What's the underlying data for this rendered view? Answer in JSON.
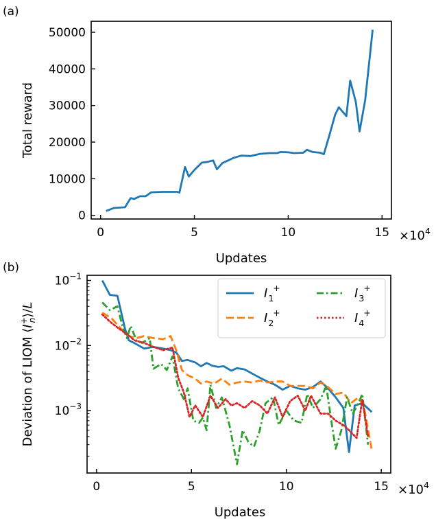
{
  "chart_data": [
    {
      "panel_label": "(a)",
      "type": "line",
      "xlabel": "Updates",
      "ylabel": "Total reward",
      "x_multiplier_label": "×10",
      "x_multiplier_exponent": "4",
      "xlim": [
        -0.5,
        15.5
      ],
      "ylim": [
        -1000,
        53000
      ],
      "yscale": "linear",
      "grid": false,
      "xticks": [
        {
          "value": 0,
          "label": "0"
        },
        {
          "value": 5,
          "label": "5"
        },
        {
          "value": 10,
          "label": "10"
        },
        {
          "value": 15,
          "label": "15"
        }
      ],
      "yticks": [
        {
          "value": 0,
          "label": "0"
        },
        {
          "value": 10000,
          "label": "10000"
        },
        {
          "value": 20000,
          "label": "20000"
        },
        {
          "value": 30000,
          "label": "30000"
        },
        {
          "value": 40000,
          "label": "40000"
        },
        {
          "value": 50000,
          "label": "50000"
        }
      ],
      "series": [
        {
          "color": "#1f77b4",
          "dash": "solid",
          "points": [
            [
              0.3,
              1200
            ],
            [
              0.7,
              2000
            ],
            [
              1.3,
              2200
            ],
            [
              1.6,
              4700
            ],
            [
              1.8,
              4500
            ],
            [
              2.1,
              5200
            ],
            [
              2.4,
              5200
            ],
            [
              2.7,
              6300
            ],
            [
              3.3,
              6400
            ],
            [
              4.1,
              6400
            ],
            [
              4.2,
              6200
            ],
            [
              4.5,
              13200
            ],
            [
              4.7,
              10600
            ],
            [
              5.0,
              12400
            ],
            [
              5.4,
              14400
            ],
            [
              5.7,
              14600
            ],
            [
              6.0,
              15000
            ],
            [
              6.2,
              12600
            ],
            [
              6.5,
              14300
            ],
            [
              6.8,
              15000
            ],
            [
              7.1,
              15700
            ],
            [
              7.5,
              16300
            ],
            [
              8.0,
              16200
            ],
            [
              8.5,
              16800
            ],
            [
              9.0,
              17000
            ],
            [
              9.4,
              17000
            ],
            [
              9.6,
              17300
            ],
            [
              10.0,
              17200
            ],
            [
              10.3,
              17000
            ],
            [
              10.8,
              17100
            ],
            [
              11.0,
              17900
            ],
            [
              11.3,
              17300
            ],
            [
              11.7,
              17100
            ],
            [
              11.9,
              16700
            ],
            [
              12.2,
              22000
            ],
            [
              12.5,
              27500
            ],
            [
              12.7,
              29500
            ],
            [
              13.1,
              27100
            ],
            [
              13.3,
              36800
            ],
            [
              13.6,
              31000
            ],
            [
              13.8,
              22900
            ],
            [
              14.1,
              31500
            ],
            [
              14.5,
              50700
            ]
          ]
        }
      ]
    },
    {
      "panel_label": "(b)",
      "type": "line",
      "xlabel": "Updates",
      "ylabel_parts": {
        "prefix": "Deviation of LIOM  ⟨",
        "var": "I",
        "sub": "n",
        "sup": "+",
        "suffix": "⟩/",
        "L": "L"
      },
      "x_multiplier_label": "×10",
      "x_multiplier_exponent": "4",
      "xlim": [
        -0.5,
        15.5
      ],
      "ylim": [
        0.00011,
        0.12
      ],
      "yscale": "log",
      "grid": false,
      "xticks": [
        {
          "value": 0,
          "label": "0"
        },
        {
          "value": 5,
          "label": "5"
        },
        {
          "value": 10,
          "label": "10"
        },
        {
          "value": 15,
          "label": "15"
        }
      ],
      "yticks": [
        {
          "value": 0.1,
          "base": "10",
          "exp": "−1"
        },
        {
          "value": 0.01,
          "base": "10",
          "exp": "−2"
        },
        {
          "value": 0.001,
          "base": "10",
          "exp": "−3"
        }
      ],
      "legend_placement": "top-right",
      "series": [
        {
          "name_var": "I",
          "name_sub": "1",
          "name_sup": "+",
          "color": "#1f77b4",
          "dash": "solid",
          "points": [
            [
              0.3,
              0.1
            ],
            [
              0.7,
              0.06
            ],
            [
              1.1,
              0.058
            ],
            [
              1.5,
              0.018
            ],
            [
              1.7,
              0.012
            ],
            [
              2.1,
              0.0105
            ],
            [
              2.5,
              0.009
            ],
            [
              3.0,
              0.0095
            ],
            [
              3.5,
              0.009
            ],
            [
              3.9,
              0.0085
            ],
            [
              4.2,
              0.0078
            ],
            [
              4.5,
              0.0058
            ],
            [
              4.8,
              0.006
            ],
            [
              5.2,
              0.0055
            ],
            [
              5.5,
              0.0048
            ],
            [
              5.8,
              0.0054
            ],
            [
              6.1,
              0.0049
            ],
            [
              6.4,
              0.0047
            ],
            [
              6.7,
              0.0048
            ],
            [
              7.1,
              0.0041
            ],
            [
              7.4,
              0.0045
            ],
            [
              7.8,
              0.0043
            ],
            [
              8.2,
              0.0037
            ],
            [
              8.6,
              0.0032
            ],
            [
              9.0,
              0.0028
            ],
            [
              9.4,
              0.0025
            ],
            [
              9.8,
              0.0021
            ],
            [
              10.2,
              0.0024
            ],
            [
              10.6,
              0.0022
            ],
            [
              11.0,
              0.0021
            ],
            [
              11.4,
              0.0023
            ],
            [
              11.8,
              0.0028
            ],
            [
              12.2,
              0.0022
            ],
            [
              12.6,
              0.0016
            ],
            [
              13.0,
              0.0011
            ],
            [
              13.3,
              0.00023
            ],
            [
              13.6,
              0.0012
            ],
            [
              14.0,
              0.0013
            ],
            [
              14.5,
              0.00095
            ]
          ]
        },
        {
          "name_var": "I",
          "name_sub": "2",
          "name_sup": "+",
          "color": "#ff7f0e",
          "dash": "dashed",
          "points": [
            [
              0.3,
              0.032
            ],
            [
              0.8,
              0.026
            ],
            [
              1.3,
              0.018
            ],
            [
              1.7,
              0.014
            ],
            [
              2.1,
              0.013
            ],
            [
              2.5,
              0.014
            ],
            [
              3.0,
              0.013
            ],
            [
              3.5,
              0.0125
            ],
            [
              3.9,
              0.014
            ],
            [
              4.2,
              0.0085
            ],
            [
              4.5,
              0.0042
            ],
            [
              4.8,
              0.0035
            ],
            [
              5.2,
              0.0031
            ],
            [
              5.5,
              0.0026
            ],
            [
              5.8,
              0.0028
            ],
            [
              6.2,
              0.0026
            ],
            [
              6.6,
              0.0031
            ],
            [
              7.0,
              0.0025
            ],
            [
              7.4,
              0.0027
            ],
            [
              7.8,
              0.0028
            ],
            [
              8.2,
              0.0027
            ],
            [
              8.6,
              0.0029
            ],
            [
              9.0,
              0.0027
            ],
            [
              9.4,
              0.0028
            ],
            [
              9.8,
              0.0028
            ],
            [
              10.2,
              0.0024
            ],
            [
              10.6,
              0.0024
            ],
            [
              11.0,
              0.0024
            ],
            [
              11.4,
              0.0022
            ],
            [
              11.8,
              0.0027
            ],
            [
              12.2,
              0.0023
            ],
            [
              12.6,
              0.0018
            ],
            [
              13.0,
              0.0019
            ],
            [
              13.4,
              0.0013
            ],
            [
              13.8,
              0.0016
            ],
            [
              14.1,
              0.0011
            ],
            [
              14.5,
              0.00025
            ]
          ]
        },
        {
          "name_var": "I",
          "name_sub": "3",
          "name_sup": "+",
          "color": "#2ca02c",
          "dash": "dashdot",
          "points": [
            [
              0.3,
              0.046
            ],
            [
              0.7,
              0.035
            ],
            [
              1.1,
              0.04
            ],
            [
              1.4,
              0.018
            ],
            [
              1.6,
              0.013
            ],
            [
              1.8,
              0.02
            ],
            [
              2.1,
              0.012
            ],
            [
              2.4,
              0.011
            ],
            [
              2.8,
              0.013
            ],
            [
              3.0,
              0.0044
            ],
            [
              3.4,
              0.0052
            ],
            [
              3.7,
              0.0042
            ],
            [
              4.0,
              0.0068
            ],
            [
              4.3,
              0.0022
            ],
            [
              4.6,
              0.0015
            ],
            [
              4.8,
              0.0022
            ],
            [
              5.1,
              0.0007
            ],
            [
              5.4,
              0.00065
            ],
            [
              5.6,
              0.00078
            ],
            [
              5.8,
              0.0005
            ],
            [
              6.0,
              0.0025
            ],
            [
              6.3,
              0.0011
            ],
            [
              6.6,
              0.0016
            ],
            [
              7.0,
              0.0006
            ],
            [
              7.4,
              0.00015
            ],
            [
              7.7,
              0.0005
            ],
            [
              8.0,
              0.00033
            ],
            [
              8.3,
              0.00028
            ],
            [
              8.6,
              0.0005
            ],
            [
              8.9,
              0.0013
            ],
            [
              9.3,
              0.0016
            ],
            [
              9.6,
              0.0006
            ],
            [
              10.0,
              0.001
            ],
            [
              10.4,
              0.0007
            ],
            [
              10.8,
              0.00065
            ],
            [
              11.1,
              0.0018
            ],
            [
              11.4,
              0.0011
            ],
            [
              11.8,
              0.0015
            ],
            [
              12.1,
              0.0024
            ],
            [
              12.4,
              0.0006
            ],
            [
              12.6,
              0.00026
            ],
            [
              12.9,
              0.0005
            ],
            [
              13.2,
              0.0016
            ],
            [
              13.5,
              0.0009
            ],
            [
              13.8,
              0.0013
            ],
            [
              14.0,
              0.0018
            ],
            [
              14.3,
              0.0003
            ]
          ]
        },
        {
          "name_var": "I",
          "name_sub": "4",
          "name_sup": "+",
          "color": "#d62728",
          "dash": "dotted",
          "points": [
            [
              0.3,
              0.03
            ],
            [
              0.8,
              0.022
            ],
            [
              1.2,
              0.018
            ],
            [
              1.6,
              0.015
            ],
            [
              2.0,
              0.012
            ],
            [
              2.5,
              0.011
            ],
            [
              3.0,
              0.0095
            ],
            [
              3.5,
              0.0085
            ],
            [
              4.0,
              0.0093
            ],
            [
              4.3,
              0.0032
            ],
            [
              4.6,
              0.0019
            ],
            [
              4.9,
              0.0008
            ],
            [
              5.2,
              0.0012
            ],
            [
              5.6,
              0.0008
            ],
            [
              6.0,
              0.0017
            ],
            [
              6.4,
              0.0011
            ],
            [
              6.8,
              0.0015
            ],
            [
              7.1,
              0.0012
            ],
            [
              7.4,
              0.0013
            ],
            [
              7.8,
              0.0011
            ],
            [
              8.2,
              0.0014
            ],
            [
              8.6,
              0.0012
            ],
            [
              9.0,
              0.0009
            ],
            [
              9.4,
              0.0016
            ],
            [
              9.8,
              0.0008
            ],
            [
              10.2,
              0.0014
            ],
            [
              10.6,
              0.0017
            ],
            [
              11.0,
              0.001
            ],
            [
              11.3,
              0.0017
            ],
            [
              11.8,
              0.0009
            ],
            [
              12.2,
              0.0009
            ],
            [
              12.6,
              0.0007
            ],
            [
              13.0,
              0.0006
            ],
            [
              13.3,
              0.0005
            ],
            [
              13.7,
              0.00038
            ],
            [
              14.0,
              0.0015
            ],
            [
              14.3,
              0.0004
            ]
          ]
        }
      ]
    }
  ]
}
